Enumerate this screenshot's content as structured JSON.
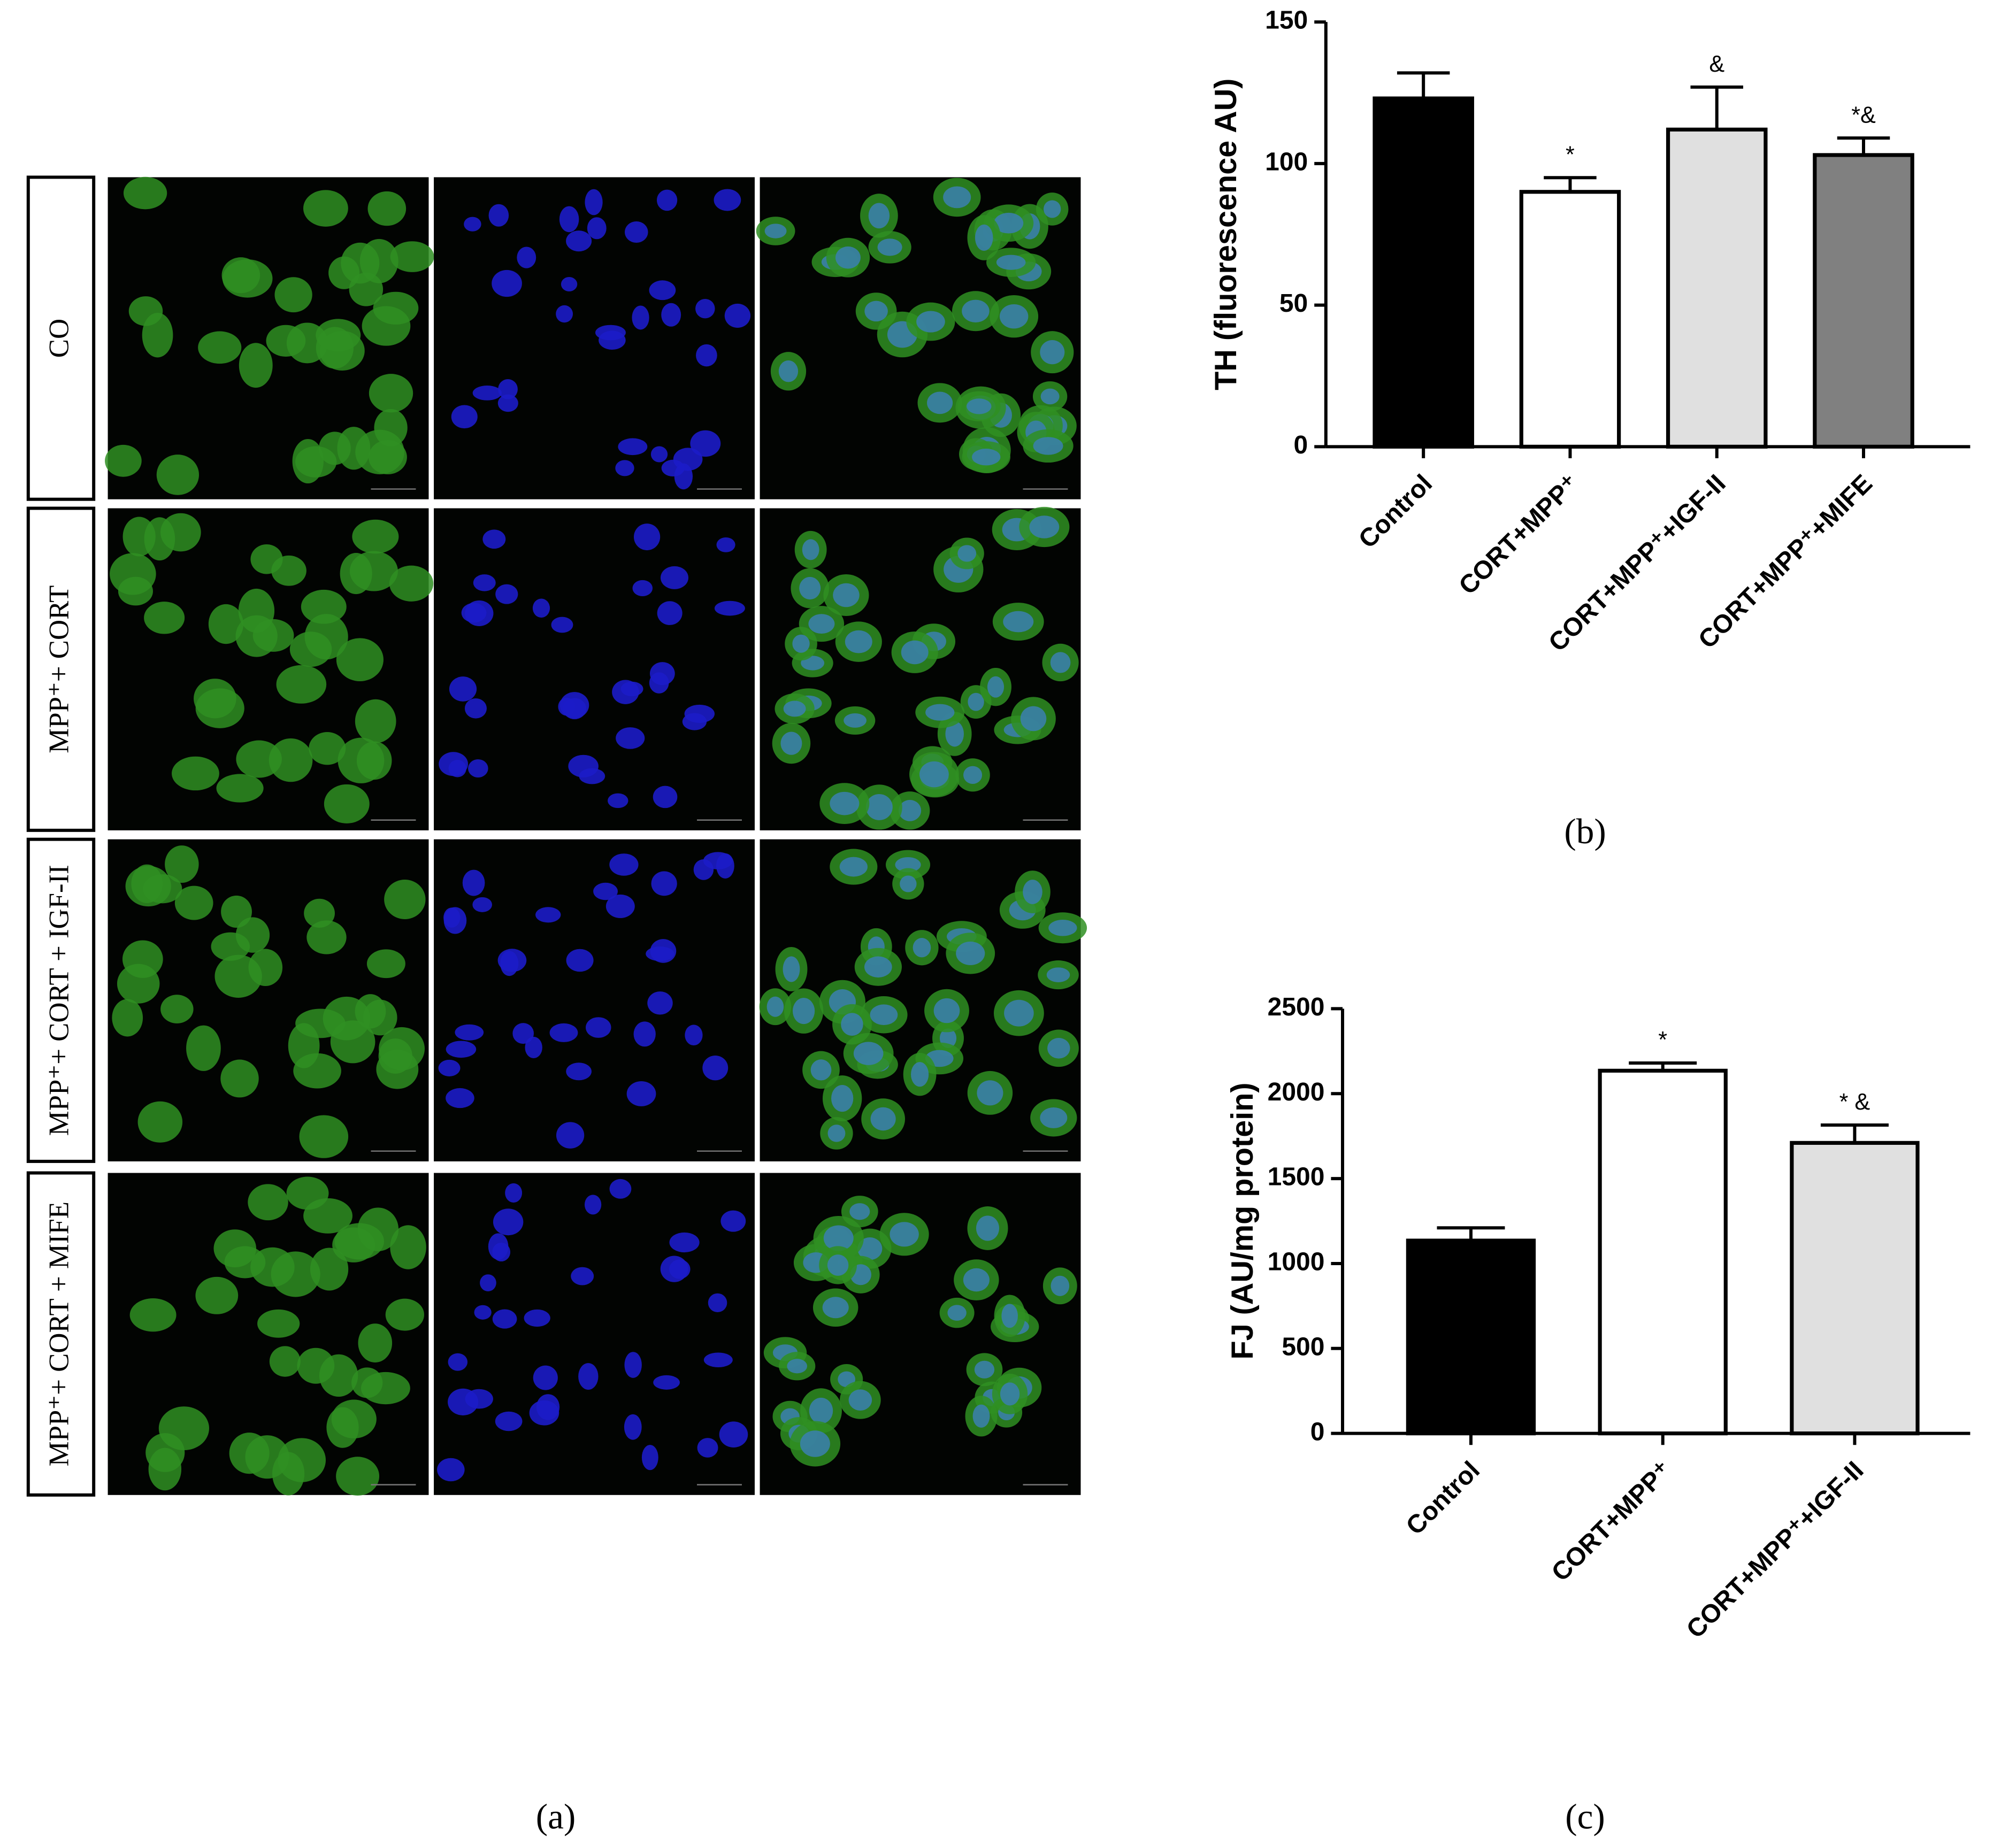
{
  "figure": {
    "panel_label": "(a)",
    "row_labels": [
      "CO",
      "MPP⁺+ CORT",
      "MPP⁺+ CORT + IGF-II",
      "MPP⁺+ CORT + MIFE"
    ]
  },
  "chart_data": [
    {
      "type": "bar",
      "panel_label": "(b)",
      "ylabel": "TH (fluorescence AU)",
      "categories": [
        "Control",
        "CORT+MPP⁺",
        "CORT+MPP⁺+IGF-II",
        "CORT+MPP⁺+MIFE"
      ],
      "values": [
        123,
        90,
        112,
        103
      ],
      "errors": [
        9,
        5,
        15,
        6
      ],
      "annotations": [
        null,
        "*",
        "&",
        "*&"
      ],
      "colors": [
        "#000000",
        "#ffffff",
        "#e0e0e0",
        "#808080"
      ],
      "ylim": [
        0,
        150
      ],
      "yticks": [
        0,
        50,
        100,
        150
      ]
    },
    {
      "type": "bar",
      "panel_label": "(c)",
      "ylabel": "FJ (AU/mg protein)",
      "categories": [
        "Control",
        "CORT+MPP⁺",
        "CORT+MPP⁺+IGF-II"
      ],
      "values": [
        1135,
        2135,
        1710
      ],
      "errors": [
        75,
        45,
        105
      ],
      "annotations": [
        null,
        "*",
        "* &"
      ],
      "colors": [
        "#000000",
        "#ffffff",
        "#e0e0e0"
      ],
      "ylim": [
        0,
        2500
      ],
      "yticks": [
        0,
        500,
        1000,
        1500,
        2000,
        2500
      ]
    }
  ]
}
